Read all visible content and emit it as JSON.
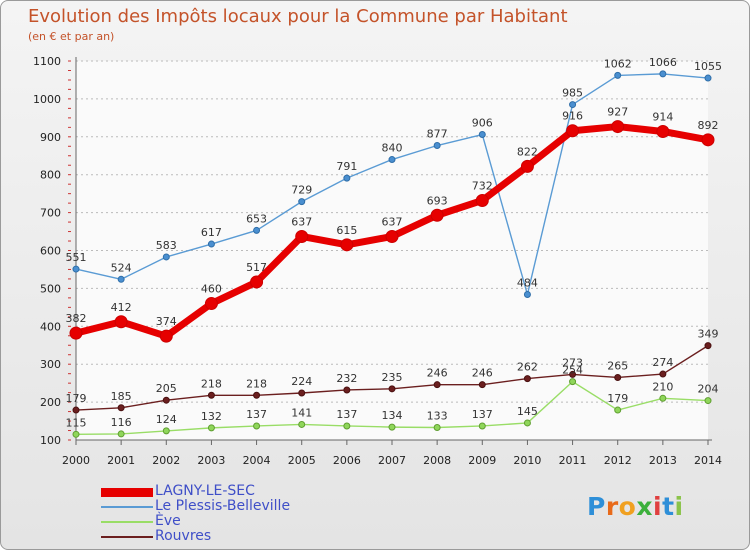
{
  "title": "Evolution des Impôts locaux pour la Commune par Habitant",
  "subtitle": "(en € et par an)",
  "logo": {
    "text": "Proxiti",
    "letters": [
      "P",
      "r",
      "o",
      "x",
      "i",
      "t",
      "i"
    ]
  },
  "colors": {
    "lagny": "#e60000",
    "plessis": "#5a9bd4",
    "eve": "#99dd66",
    "rouvres": "#6b1f1f",
    "title": "#c4532a",
    "legend_text": "#3f4fc8"
  },
  "chart_data": {
    "type": "line",
    "title": "Evolution des Impôts locaux pour la Commune par Habitant",
    "subtitle": "(en € et par an)",
    "xlabel": "",
    "ylabel": "",
    "x": [
      2000,
      2001,
      2002,
      2003,
      2004,
      2005,
      2006,
      2007,
      2008,
      2009,
      2010,
      2011,
      2012,
      2013,
      2014
    ],
    "ylim": [
      100,
      1100
    ],
    "yticks": [
      100,
      200,
      300,
      400,
      500,
      600,
      700,
      800,
      900,
      1000,
      1100
    ],
    "grid": true,
    "legend": "bottom-left",
    "series": [
      {
        "name": "LAGNY-LE-SEC",
        "key": "lagny",
        "values": [
          382,
          412,
          374,
          460,
          517,
          637,
          615,
          637,
          693,
          732,
          822,
          916,
          927,
          914,
          892
        ]
      },
      {
        "name": "Le Plessis-Belleville",
        "key": "plessis",
        "values": [
          551,
          524,
          583,
          617,
          653,
          729,
          791,
          840,
          877,
          906,
          484,
          985,
          1062,
          1066,
          1055
        ]
      },
      {
        "name": "Ève",
        "key": "eve",
        "values": [
          115,
          116,
          124,
          132,
          137,
          141,
          137,
          134,
          133,
          137,
          145,
          254,
          179,
          210,
          204
        ]
      },
      {
        "name": "Rouvres",
        "key": "rouvres",
        "values": [
          179,
          185,
          205,
          218,
          218,
          224,
          232,
          235,
          246,
          246,
          262,
          273,
          265,
          274,
          349
        ]
      }
    ]
  }
}
